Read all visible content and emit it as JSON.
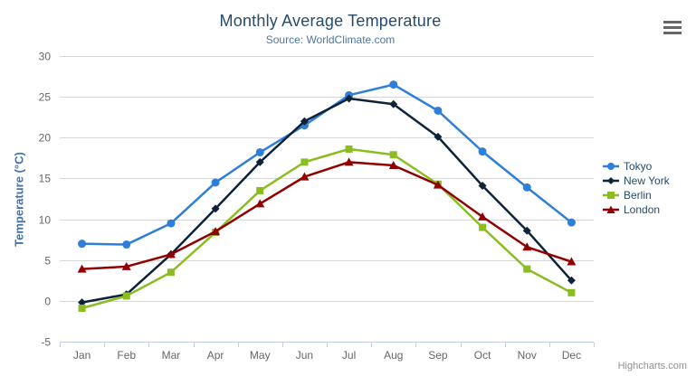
{
  "header": {
    "menu_icon": "hamburger-icon"
  },
  "credits": "Highcharts.com",
  "palette": {
    "title_color": "#274b6d",
    "subtitle_color": "#4d759e",
    "axis_title_color": "#4572a7",
    "axis_label_color": "#666666",
    "grid_color": "#d8d8d8",
    "axis_line_color": "#c0d0e0",
    "background": "#ffffff"
  },
  "chart_data": {
    "type": "line",
    "title": "Monthly Average Temperature",
    "subtitle": "Source: WorldClimate.com",
    "xlabel": "",
    "ylabel": "Temperature (°C)",
    "categories": [
      "Jan",
      "Feb",
      "Mar",
      "Apr",
      "May",
      "Jun",
      "Jul",
      "Aug",
      "Sep",
      "Oct",
      "Nov",
      "Dec"
    ],
    "ylim": [
      -5,
      30
    ],
    "ytick_step": 5,
    "grid": true,
    "legend_position": "right",
    "series": [
      {
        "name": "Tokyo",
        "color": "#2f7ed8",
        "marker": "circle",
        "values": [
          7.0,
          6.9,
          9.5,
          14.5,
          18.2,
          21.5,
          25.2,
          26.5,
          23.3,
          18.3,
          13.9,
          9.6
        ]
      },
      {
        "name": "New York",
        "color": "#0d233a",
        "marker": "diamond",
        "values": [
          -0.2,
          0.8,
          5.7,
          11.3,
          17.0,
          22.0,
          24.8,
          24.1,
          20.1,
          14.1,
          8.6,
          2.5
        ]
      },
      {
        "name": "Berlin",
        "color": "#8bbc21",
        "marker": "square",
        "values": [
          -0.9,
          0.6,
          3.5,
          8.4,
          13.5,
          17.0,
          18.6,
          17.9,
          14.3,
          9.0,
          3.9,
          1.0
        ]
      },
      {
        "name": "London",
        "color": "#910000",
        "marker": "triangle",
        "values": [
          3.9,
          4.2,
          5.7,
          8.5,
          11.9,
          15.2,
          17.0,
          16.6,
          14.2,
          10.3,
          6.6,
          4.8
        ]
      }
    ]
  }
}
